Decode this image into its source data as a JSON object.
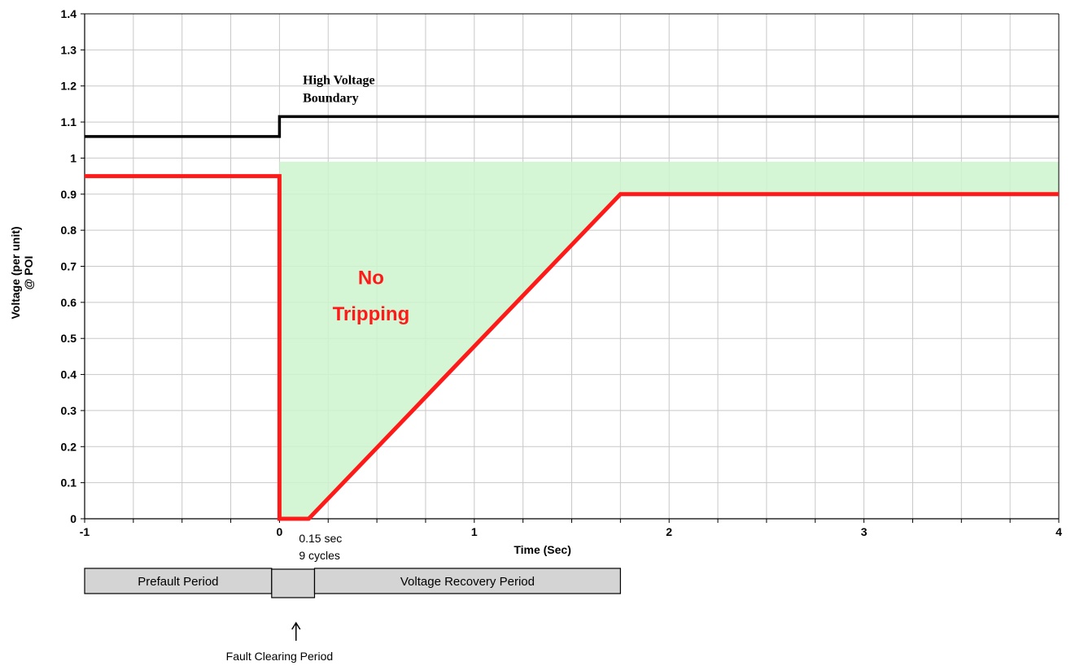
{
  "chart_data": {
    "type": "line",
    "title": "",
    "xlabel": "Time (Sec)",
    "ylabel_lines": [
      "Voltage (per unit)",
      "@ POI"
    ],
    "xlim": [
      -1,
      4
    ],
    "ylim": [
      0,
      1.4
    ],
    "grid": true,
    "x_ticks": [
      -1,
      0,
      1,
      2,
      3,
      4
    ],
    "y_ticks": [
      0,
      0.1,
      0.2,
      0.3,
      0.4,
      0.5,
      0.6,
      0.7,
      0.8,
      0.9,
      1,
      1.1,
      1.2,
      1.3,
      1.4
    ],
    "series": [
      {
        "name": "High Voltage Boundary",
        "color": "#000000",
        "x": [
          -1,
          0,
          0,
          4
        ],
        "y": [
          1.06,
          1.06,
          1.115,
          1.115
        ]
      },
      {
        "color": "#ff1a1a",
        "x": [
          -1,
          0,
          0,
          0.15,
          1.75,
          4
        ],
        "y": [
          0.95,
          0.95,
          0,
          0,
          0.9,
          0.9
        ]
      }
    ],
    "shaded_region": {
      "label_lines": [
        "No",
        "Tripping"
      ],
      "color": "#ccf5cc",
      "polygon_x": [
        0,
        4,
        4,
        1.75,
        0.15,
        0
      ],
      "polygon_y": [
        0.99,
        0.99,
        0.9,
        0.9,
        0,
        0
      ]
    },
    "annotations": [
      {
        "lines": [
          "High Voltage",
          "Boundary"
        ]
      },
      {
        "lines": [
          "0.15 sec",
          "9 cycles"
        ]
      }
    ],
    "period_bars": [
      {
        "label": "Prefault Period",
        "x_start": -1,
        "x_end": -0.04
      },
      {
        "label": "",
        "x_start": -0.04,
        "x_end": 0.18
      },
      {
        "label": "Voltage Recovery Period",
        "x_start": 0.18,
        "x_end": 1.75
      }
    ],
    "fault_clearing_label": "Fault Clearing Period"
  }
}
